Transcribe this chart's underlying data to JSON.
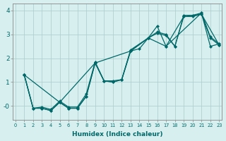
{
  "xlabel": "Humidex (Indice chaleur)",
  "background_color": "#d8efef",
  "grid_color": "#b0d0d0",
  "line_color": "#006868",
  "markersize": 2.5,
  "linewidth": 0.9,
  "xlim": [
    -0.3,
    23.3
  ],
  "ylim": [
    -0.6,
    4.3
  ],
  "yticks": [
    0,
    1,
    2,
    3,
    4
  ],
  "ytick_labels": [
    "-0",
    "1",
    "2",
    "3",
    "4"
  ],
  "xticks": [
    0,
    1,
    2,
    3,
    4,
    5,
    6,
    7,
    8,
    9,
    10,
    11,
    12,
    13,
    14,
    15,
    16,
    17,
    18,
    19,
    20,
    21,
    22,
    23
  ],
  "series": [
    {
      "x": [
        1,
        2,
        3,
        4,
        5,
        6,
        7,
        8,
        9,
        10,
        11,
        12,
        13,
        14,
        15,
        16,
        17,
        18,
        19,
        20,
        21,
        22,
        23
      ],
      "y": [
        1.3,
        -0.1,
        -0.1,
        -0.2,
        0.15,
        -0.1,
        -0.1,
        0.4,
        1.8,
        1.05,
        1.0,
        1.1,
        2.3,
        2.4,
        2.85,
        3.05,
        2.95,
        2.5,
        3.75,
        3.75,
        3.85,
        2.85,
        2.55
      ]
    },
    {
      "x": [
        1,
        2,
        3,
        4,
        5,
        6,
        7,
        8,
        9,
        10,
        11,
        12,
        13,
        15,
        16,
        17,
        21,
        22,
        23
      ],
      "y": [
        1.3,
        -0.1,
        -0.1,
        -0.2,
        0.15,
        -0.1,
        -0.1,
        0.4,
        1.8,
        1.05,
        1.0,
        1.1,
        2.3,
        2.85,
        3.35,
        2.5,
        3.9,
        2.5,
        2.6
      ]
    },
    {
      "x": [
        1,
        2,
        3,
        4,
        5,
        6,
        7,
        8,
        9,
        10,
        11,
        12,
        13,
        15,
        16,
        17,
        18,
        19,
        20,
        21,
        22,
        23
      ],
      "y": [
        1.3,
        -0.1,
        -0.05,
        -0.15,
        0.2,
        -0.05,
        -0.05,
        0.5,
        1.85,
        1.05,
        1.05,
        1.1,
        2.35,
        2.85,
        3.1,
        3.0,
        2.5,
        3.8,
        3.8,
        3.9,
        2.9,
        2.6
      ]
    },
    {
      "x": [
        1,
        5,
        9,
        13,
        15,
        17,
        19,
        21,
        23
      ],
      "y": [
        1.3,
        0.15,
        1.8,
        2.3,
        2.85,
        2.5,
        3.75,
        3.85,
        2.55
      ]
    }
  ]
}
